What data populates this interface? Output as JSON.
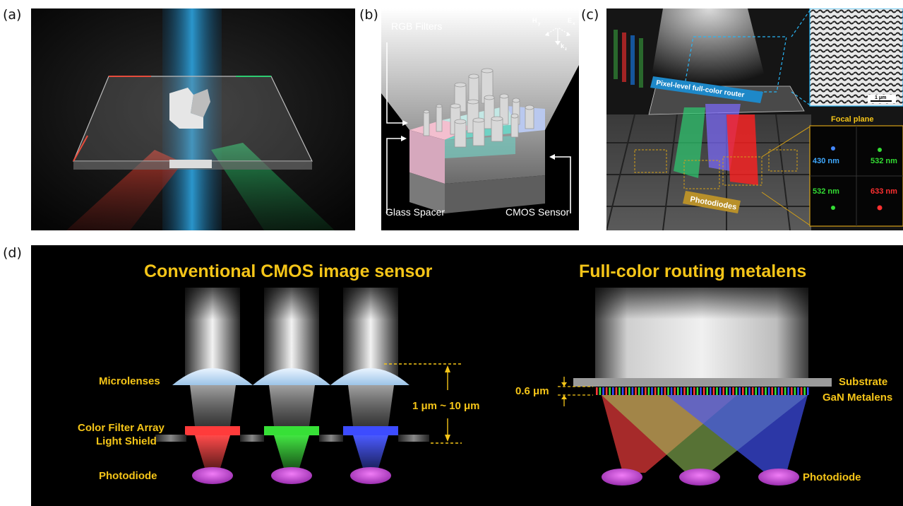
{
  "panels": {
    "a": {
      "label": "(a)"
    },
    "b": {
      "label": "(b)",
      "rgb_filters": "RGB Filters",
      "glass_spacer": "Glass Spacer",
      "cmos_sensor": "CMOS Sensor",
      "axis_h": "H",
      "axis_h_sub": "y",
      "axis_e": "E",
      "axis_e_sub": "x",
      "axis_k": "k",
      "axis_k_sub": "z"
    },
    "c": {
      "label": "(c)",
      "router_label": "Pixel-level full-color router",
      "scale_bar": "1 μm",
      "focal_plane": "Focal plane",
      "wl_blue": "430 nm",
      "wl_green_top": "532 nm",
      "wl_green_bottom": "532 nm",
      "wl_red": "633 nm",
      "photodiodes": "Photodiodes"
    },
    "d": {
      "label": "(d)",
      "left_title": "Conventional CMOS image sensor",
      "right_title": "Full-color routing metalens",
      "microlenses": "Microlenses",
      "color_filter_array": "Color Filter Array",
      "light_shield": "Light Shield",
      "photodiode_left": "Photodiode",
      "thickness_left": "1 μm ~ 10 μm",
      "thickness_right": "0.6 μm",
      "substrate": "Substrate",
      "gan_metalens": "GaN Metalens",
      "photodiode_right": "Photodiode"
    }
  },
  "colors": {
    "title_yellow": "#f5c518",
    "red": "#ff3a3a",
    "green": "#38e038",
    "blue": "#3a4dff",
    "photodiode": "#c94fd6"
  }
}
